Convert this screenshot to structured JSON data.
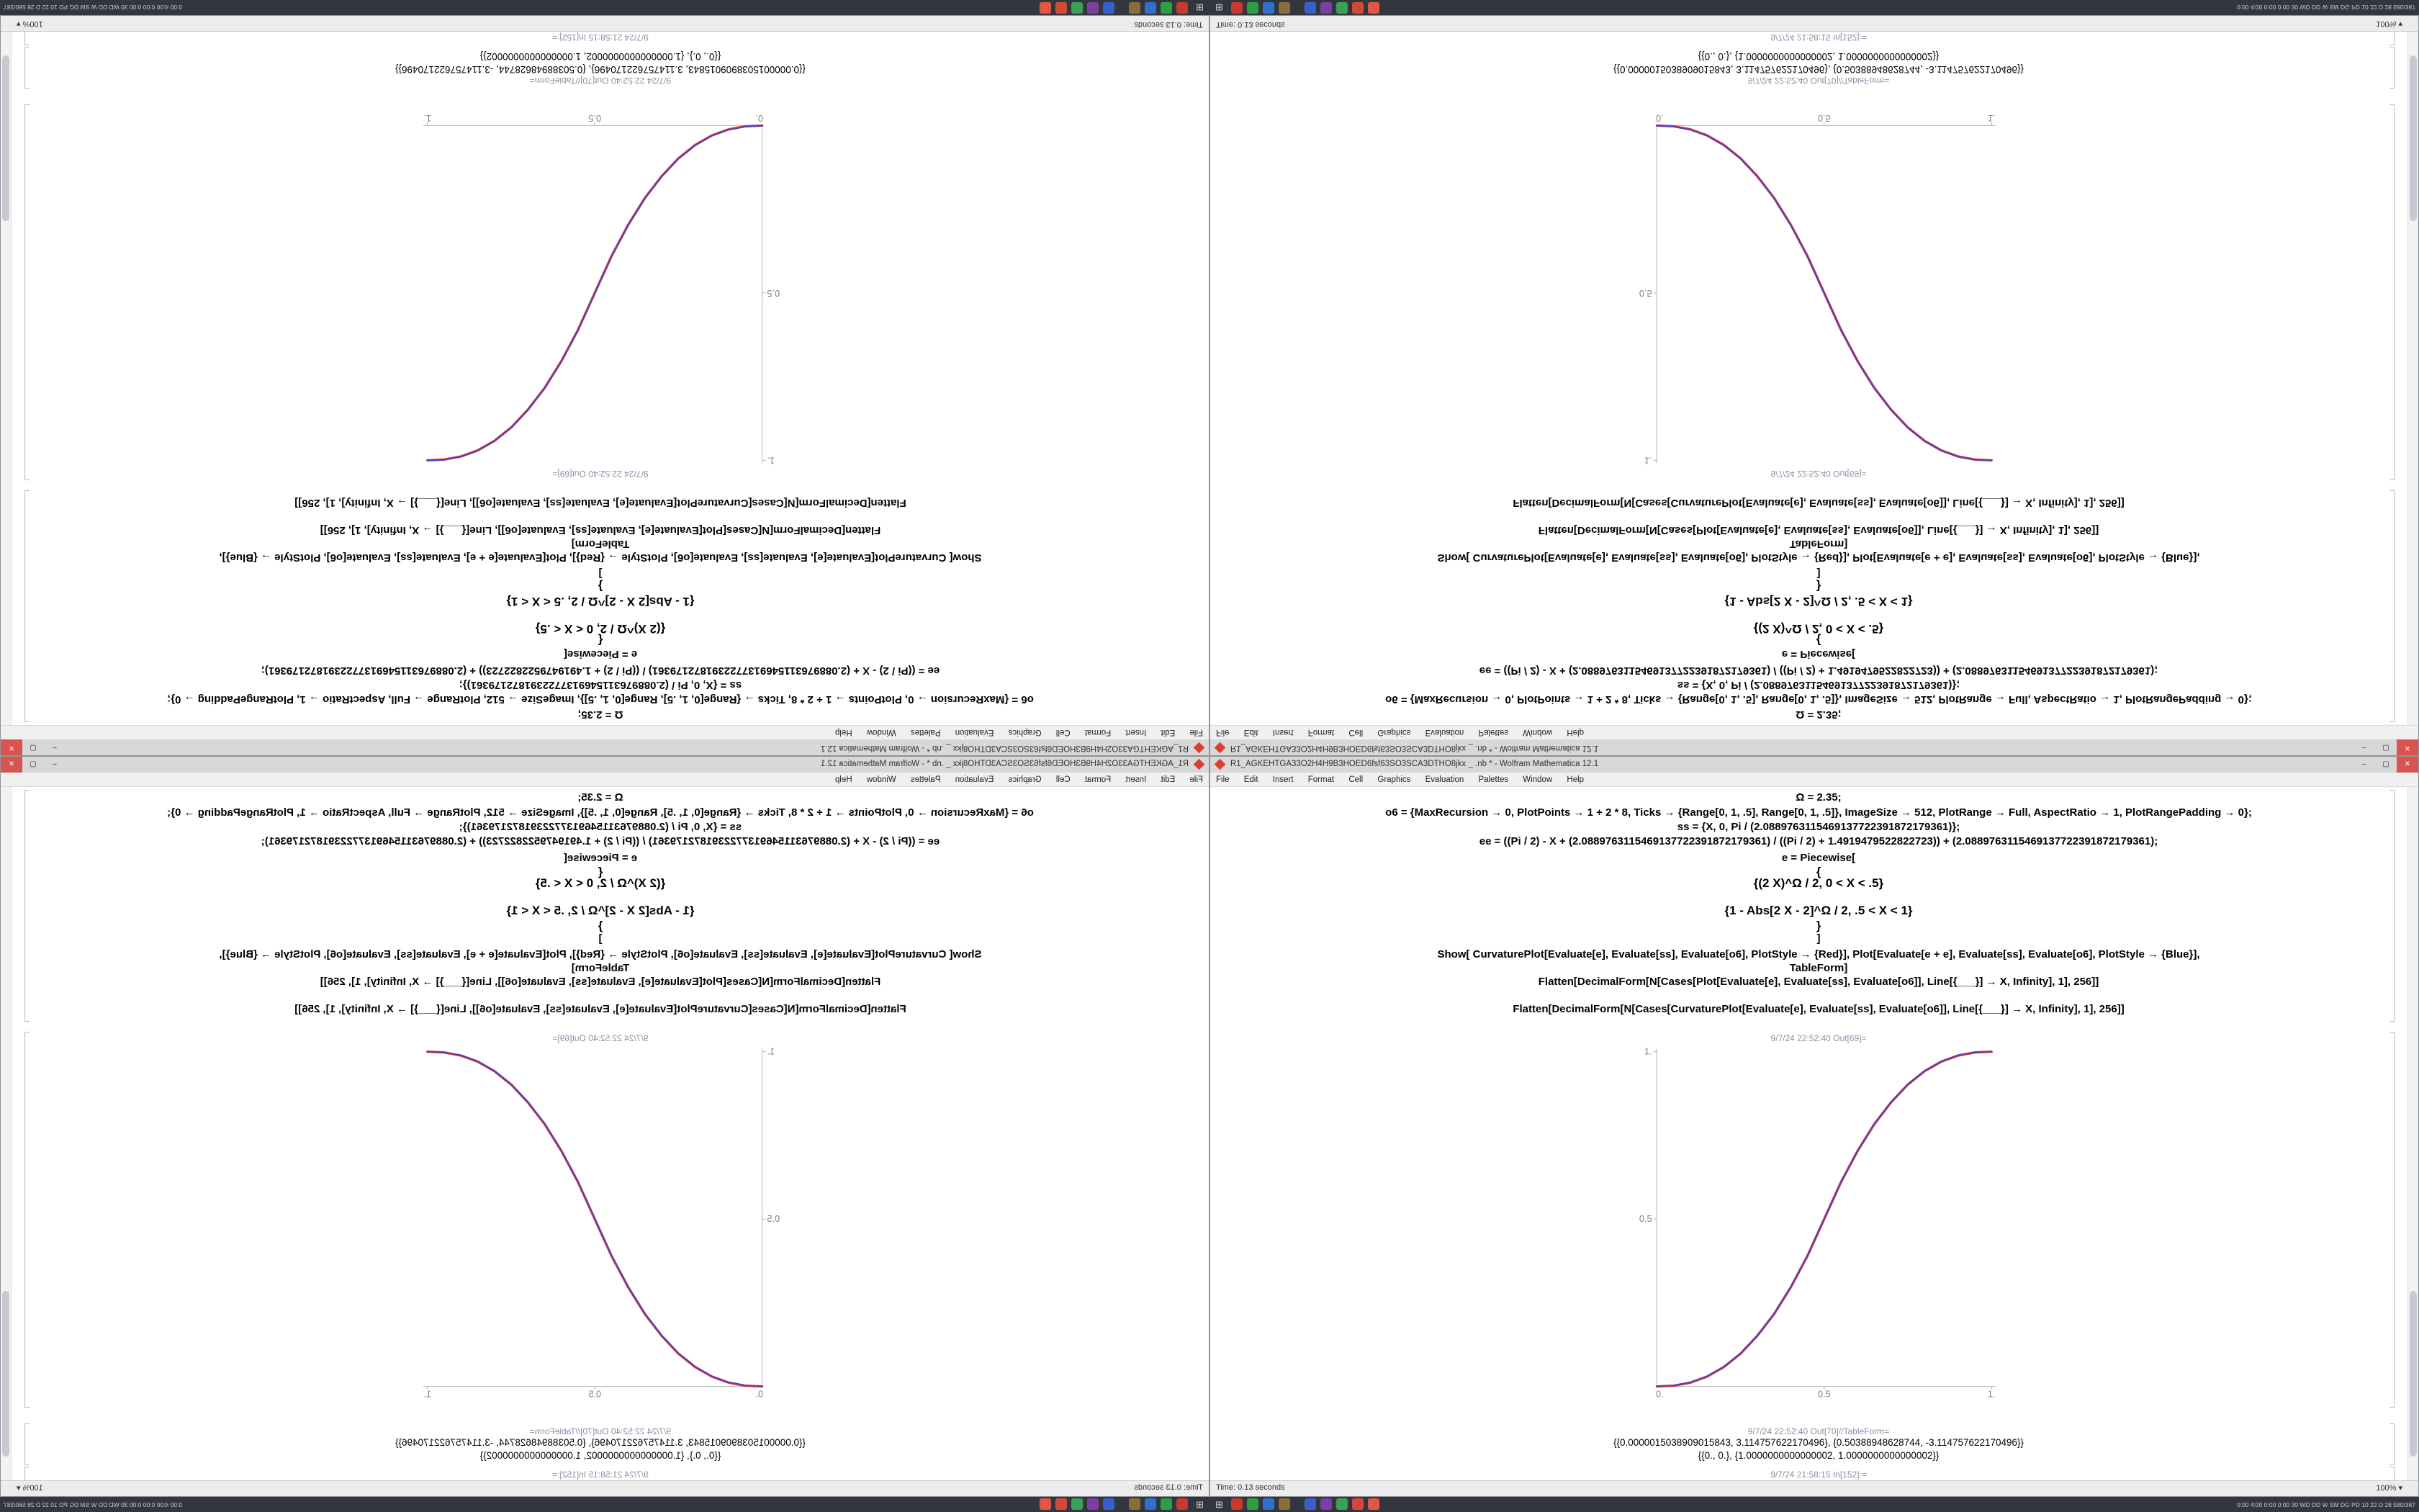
{
  "window": {
    "title": "R1_AGKEHTGA33O2H4H9B3HOED6fsf63SO3SCA3DTHO8jkx _ .nb * - Wolfram Mathematica 12.1",
    "menu": [
      "File",
      "Edit",
      "Insert",
      "Format",
      "Cell",
      "Graphics",
      "Evaluation",
      "Palettes",
      "Window",
      "Help"
    ],
    "controls": {
      "minimize": "–",
      "maximize": "▢",
      "close": "✕"
    },
    "status": {
      "time": "Time: 0.13 seconds",
      "zoom": "100%",
      "zoom_arrow": "▾"
    }
  },
  "notebook": {
    "lines": [
      "Ω = 2.35;",
      "o6 = {MaxRecursion → 0, PlotPoints → 1 + 2 * 8, Ticks → {Range[0, 1, .5], Range[0, 1, .5]}, ImageSize → 512, PlotRange → Full, AspectRatio → 1, PlotRangePadding → 0};",
      "ss = {X, 0, Pi / (2.0889763115469137722391872179361)};",
      "ee = ((Pi / 2) - X + (2.0889763115469137722391872179361) / ((Pi / 2) + 1.4919479522822723)) + (2.0889763115469137722391872179361);",
      "e = Piecewise[",
      "{",
      "{(2 X)^Ω / 2,   0 < X < .5}",
      "{1 - Abs[2 X - 2]^Ω / 2,   .5 < X < 1}",
      "}",
      "]",
      "Show[ CurvaturePlot[Evaluate[e], Evaluate[ss], Evaluate[o6], PlotStyle → {Red}],   Plot[Evaluate[e + e], Evaluate[ss], Evaluate[o6], PlotStyle → {Blue}],",
      "TableForm]",
      "Flatten[DecimalForm[N[Cases[Plot[Evaluate[e], Evaluate[ss], Evaluate[o6]], Line[{___}] → X, Infinity], 1], 256]]",
      "Flatten[DecimalForm[N[Cases[CurvaturePlot[Evaluate[e], Evaluate[ss], Evaluate[o6]], Line[{___}] → X, Infinity], 1], 256]]"
    ],
    "out_plot_label": "9/7/24 22:52:40 Out[69]=",
    "out_table_label": "9/7/24 22:52:40 Out[70]//TableForm=",
    "table_rows": [
      "{{0.0000015038909015843, 3.114757622170496}, {0.50388948628744, -3.114757622170496}}",
      "{{0., 0.}, {1.0000000000000002, 1.0000000000000002}}"
    ],
    "next_in_label": "9/7/24 21:58:15 In[152]:="
  },
  "taskbar": {
    "start_glyph": "⊞",
    "tray": "0:00 4:00 0:00 0:00 30 WD DD W SM DG PD 10 22 D 28 580/387",
    "icons": [
      {
        "label": "app-red",
        "color": "#c8382e"
      },
      {
        "label": "app-green",
        "color": "#2e9e44"
      },
      {
        "label": "app-blue",
        "color": "#2f6fce"
      },
      {
        "label": "app-brown",
        "color": "#8a6d3b"
      },
      {
        "label": "app-indigo",
        "color": "#3a5fcd"
      },
      {
        "label": "app-purple",
        "color": "#7b3fa0"
      },
      {
        "label": "app-green-2",
        "color": "#3aa05a"
      },
      {
        "label": "app-red-2",
        "color": "#d04a3a"
      },
      {
        "label": "app-red-3",
        "color": "#e05545"
      }
    ]
  },
  "chart_data": {
    "type": "line",
    "title": "",
    "xlabel": "",
    "ylabel": "",
    "xlim": [
      0,
      1
    ],
    "ylim": [
      0,
      1
    ],
    "x_tick_labels": [
      "0.",
      "0.5",
      "1."
    ],
    "y_tick_labels": [
      "0.5",
      "1."
    ],
    "grid": false,
    "legend": "none (Red and Blue curves overlaid, appearing magenta)",
    "axes_style": "left and bottom axes only, light gray, no frame",
    "image_size": 512,
    "aspect_ratio": 1,
    "function": "Piecewise[{{(2 X)^2.35/2, 0<X<.5}, {1-Abs[2 X-2]^2.35/2, .5<X<1}}]",
    "x": [
      0,
      0.05,
      0.1,
      0.15,
      0.2,
      0.25,
      0.3,
      0.35,
      0.4,
      0.45,
      0.5,
      0.55,
      0.6,
      0.65,
      0.7,
      0.75,
      0.8,
      0.85,
      0.9,
      0.95,
      1
    ],
    "series": [
      {
        "name": "CurvaturePlot (Red)",
        "color": "#d63333",
        "values": [
          0,
          0.0022,
          0.0114,
          0.0295,
          0.058,
          0.098,
          0.151,
          0.216,
          0.296,
          0.39,
          0.5,
          0.61,
          0.704,
          0.784,
          0.849,
          0.902,
          0.942,
          0.9705,
          0.9886,
          0.9978,
          1
        ]
      },
      {
        "name": "Plot (Blue)",
        "color": "#4444cc",
        "values": [
          0,
          0.0022,
          0.0114,
          0.0295,
          0.058,
          0.098,
          0.151,
          0.216,
          0.296,
          0.39,
          0.5,
          0.61,
          0.704,
          0.784,
          0.849,
          0.902,
          0.942,
          0.9705,
          0.9886,
          0.9978,
          1
        ]
      }
    ]
  }
}
